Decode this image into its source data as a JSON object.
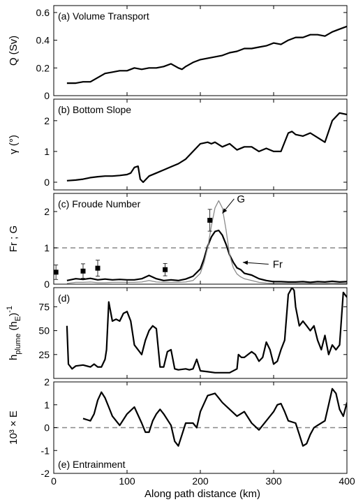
{
  "chart_data": {
    "type": "line",
    "xlabel": "Along path distance (km)",
    "xlim": [
      0,
      400
    ],
    "xticks": [
      0,
      100,
      200,
      300,
      400
    ],
    "panels": [
      {
        "id": "a",
        "label": "(a) Volume Transport",
        "ylabel": "Q (Sv)",
        "ylim": [
          0,
          0.65
        ],
        "yticks": [
          0,
          0.2,
          0.4,
          0.6
        ],
        "ytick_labels": [
          "0",
          "0.2",
          "0.4",
          "0.6"
        ],
        "series": [
          {
            "style": "thick-black",
            "x": [
              18,
              30,
              40,
              50,
              60,
              70,
              80,
              90,
              100,
              110,
              120,
              130,
              140,
              150,
              160,
              170,
              175,
              180,
              190,
              200,
              210,
              220,
              230,
              240,
              250,
              260,
              270,
              280,
              290,
              300,
              310,
              320,
              330,
              340,
              350,
              360,
              370,
              380,
              390,
              400
            ],
            "y": [
              0.09,
              0.09,
              0.1,
              0.1,
              0.13,
              0.16,
              0.17,
              0.18,
              0.18,
              0.2,
              0.19,
              0.2,
              0.2,
              0.21,
              0.23,
              0.2,
              0.19,
              0.21,
              0.24,
              0.26,
              0.27,
              0.28,
              0.29,
              0.31,
              0.32,
              0.34,
              0.34,
              0.35,
              0.36,
              0.38,
              0.37,
              0.4,
              0.42,
              0.42,
              0.44,
              0.44,
              0.43,
              0.46,
              0.48,
              0.5
            ]
          }
        ]
      },
      {
        "id": "b",
        "label": "(b) Bottom Slope",
        "ylabel": "γ (°)",
        "ylim": [
          -0.25,
          2.7
        ],
        "yticks": [
          0,
          1,
          2
        ],
        "ytick_labels": [
          "0",
          "1",
          "2"
        ],
        "series": [
          {
            "style": "thick-black",
            "x": [
              18,
              30,
              40,
              50,
              60,
              70,
              80,
              90,
              100,
              105,
              110,
              115,
              118,
              122,
              130,
              140,
              150,
              160,
              170,
              180,
              190,
              200,
              210,
              215,
              220,
              230,
              240,
              250,
              260,
              270,
              280,
              290,
              300,
              310,
              320,
              325,
              330,
              340,
              350,
              360,
              370,
              380,
              390,
              400
            ],
            "y": [
              0.05,
              0.07,
              0.1,
              0.15,
              0.18,
              0.2,
              0.2,
              0.22,
              0.25,
              0.3,
              0.48,
              0.52,
              0.1,
              0.0,
              0.2,
              0.3,
              0.4,
              0.5,
              0.6,
              0.75,
              1.0,
              1.25,
              1.3,
              1.25,
              1.3,
              1.15,
              1.25,
              1.05,
              1.15,
              1.15,
              1.0,
              1.1,
              1.0,
              1.0,
              1.6,
              1.65,
              1.55,
              1.5,
              1.6,
              1.45,
              1.3,
              2.0,
              2.25,
              2.2
            ]
          }
        ]
      },
      {
        "id": "c",
        "label": "(c) Froude Number",
        "ylabel": "Fr ; G",
        "ylim": [
          0,
          2.5
        ],
        "yticks": [
          0,
          1,
          2
        ],
        "ytick_labels": [
          "0",
          "1",
          "2"
        ],
        "reference_line": 1,
        "annotations": [
          {
            "text": "G",
            "x": 248,
            "y": 2.35,
            "arrow_to": [
              230,
              1.95
            ]
          },
          {
            "text": "Fr",
            "x": 295,
            "y": 0.55,
            "arrow_to": [
              258,
              0.6
            ]
          }
        ],
        "series": [
          {
            "name": "Fr",
            "style": "thick-black",
            "x": [
              18,
              30,
              40,
              50,
              60,
              70,
              80,
              90,
              100,
              110,
              120,
              130,
              140,
              150,
              160,
              170,
              180,
              190,
              200,
              205,
              210,
              215,
              220,
              225,
              230,
              235,
              240,
              245,
              250,
              255,
              260,
              270,
              280,
              290,
              300,
              310,
              320,
              330,
              340,
              350,
              360,
              370,
              380,
              390,
              400
            ],
            "y": [
              0.1,
              0.15,
              0.13,
              0.16,
              0.12,
              0.14,
              0.12,
              0.13,
              0.12,
              0.12,
              0.15,
              0.24,
              0.15,
              0.1,
              0.12,
              0.1,
              0.14,
              0.22,
              0.42,
              0.7,
              1.05,
              1.3,
              1.45,
              1.48,
              1.35,
              1.1,
              0.8,
              0.6,
              0.45,
              0.4,
              0.3,
              0.25,
              0.15,
              0.1,
              0.07,
              0.07,
              0.06,
              0.06,
              0.07,
              0.05,
              0.07,
              0.06,
              0.08,
              0.06,
              0.07
            ]
          },
          {
            "name": "G",
            "style": "thin-gray",
            "x": [
              18,
              30,
              40,
              50,
              60,
              70,
              80,
              90,
              100,
              110,
              120,
              130,
              140,
              150,
              160,
              170,
              180,
              190,
              200,
              205,
              210,
              215,
              220,
              225,
              230,
              235,
              240,
              245,
              250,
              255,
              260,
              270,
              280,
              290,
              300,
              310,
              320,
              330,
              340,
              350,
              360,
              370,
              380,
              390,
              400
            ],
            "y": [
              0.02,
              0.05,
              0.05,
              0.06,
              0.04,
              0.04,
              0.05,
              0.05,
              0.05,
              0.05,
              0.06,
              0.1,
              0.06,
              0.05,
              0.05,
              0.05,
              0.06,
              0.1,
              0.3,
              0.6,
              1.0,
              1.6,
              2.1,
              2.3,
              2.1,
              1.5,
              0.8,
              0.45,
              0.28,
              0.2,
              0.15,
              0.1,
              0.05,
              0.03,
              0.02,
              0.02,
              0.02,
              0.02,
              0.02,
              0.02,
              0.02,
              0.02,
              0.03,
              0.02,
              0.02
            ]
          },
          {
            "name": "observations",
            "style": "markers",
            "x": [
              3,
              40,
              60,
              152,
              213
            ],
            "y": [
              0.33,
              0.36,
              0.44,
              0.4,
              1.76
            ],
            "err": [
              0.2,
              0.2,
              0.22,
              0.17,
              0.3
            ]
          }
        ]
      },
      {
        "id": "d",
        "label": "(d)",
        "ylabel": "h_plume (h_E)^-1",
        "ylim": [
          0,
          95
        ],
        "yticks": [
          25,
          50,
          75
        ],
        "ytick_labels": [
          "25",
          "50",
          "75"
        ],
        "series": [
          {
            "style": "thick-black",
            "x": [
              18,
              20,
              25,
              30,
              40,
              50,
              55,
              60,
              65,
              70,
              72,
              75,
              80,
              85,
              90,
              95,
              100,
              105,
              110,
              120,
              125,
              130,
              135,
              140,
              145,
              150,
              155,
              160,
              165,
              170,
              180,
              185,
              190,
              195,
              200,
              210,
              220,
              230,
              240,
              250,
              252,
              256,
              260,
              265,
              270,
              275,
              280,
              285,
              290,
              295,
              300,
              305,
              310,
              315,
              320,
              325,
              328,
              330,
              335,
              340,
              345,
              350,
              355,
              360,
              365,
              370,
              375,
              380,
              385,
              390,
              395,
              400
            ],
            "y": [
              55,
              15,
              10,
              13,
              14,
              12,
              15,
              12,
              12,
              20,
              30,
              80,
              60,
              62,
              60,
              68,
              70,
              60,
              35,
              25,
              40,
              50,
              55,
              52,
              12,
              12,
              28,
              30,
              10,
              9,
              10,
              9,
              10,
              20,
              8,
              7,
              6,
              6,
              6,
              10,
              25,
              22,
              22,
              25,
              28,
              25,
              18,
              22,
              38,
              30,
              15,
              18,
              30,
              40,
              88,
              95,
              92,
              75,
              55,
              60,
              55,
              50,
              55,
              40,
              30,
              45,
              25,
              35,
              30,
              35,
              90,
              85
            ]
          }
        ]
      },
      {
        "id": "e",
        "label": "(e) Entrainment",
        "ylabel": "10³ × E",
        "ylim": [
          -2,
          2
        ],
        "yticks": [
          -2,
          -1,
          0,
          1,
          2
        ],
        "ytick_labels": [
          "-2",
          "-1",
          "0",
          "1",
          "2"
        ],
        "reference_line": 0,
        "series": [
          {
            "style": "thick-black",
            "x": [
              40,
              50,
              55,
              60,
              65,
              70,
              75,
              80,
              90,
              100,
              110,
              120,
              125,
              130,
              135,
              140,
              145,
              150,
              160,
              165,
              170,
              175,
              180,
              190,
              195,
              200,
              210,
              220,
              225,
              230,
              240,
              250,
              260,
              270,
              280,
              285,
              290,
              300,
              305,
              310,
              315,
              320,
              330,
              335,
              340,
              345,
              350,
              355,
              360,
              370,
              375,
              380,
              385,
              390,
              395,
              400
            ],
            "y": [
              0.4,
              0.3,
              0.6,
              1.2,
              1.55,
              1.3,
              0.9,
              0.5,
              0.1,
              0.6,
              0.9,
              0.2,
              -0.2,
              -0.2,
              0.3,
              0.6,
              0.8,
              0.6,
              0.1,
              -0.6,
              -0.8,
              -0.3,
              0.2,
              0.2,
              0.0,
              0.7,
              1.4,
              1.5,
              1.3,
              1.1,
              0.8,
              0.5,
              0.7,
              0.2,
              -0.1,
              0.1,
              0.3,
              0.7,
              1.0,
              1.05,
              0.7,
              0.3,
              0.2,
              -0.3,
              -0.8,
              -0.7,
              -0.3,
              0.0,
              0.1,
              0.3,
              1.0,
              1.7,
              1.5,
              0.8,
              0.5,
              1.1
            ]
          }
        ]
      }
    ]
  }
}
